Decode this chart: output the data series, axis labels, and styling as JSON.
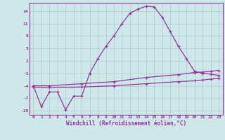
{
  "xlabel": "Windchill (Refroidissement éolien,°C)",
  "bg_color": "#cce8e8",
  "grid_color": "#b0c8c8",
  "line_color": "#993399",
  "xlim": [
    -0.5,
    23.5
  ],
  "ylim": [
    -11,
    16
  ],
  "yticks": [
    -10,
    -7,
    -4,
    -1,
    2,
    5,
    8,
    11,
    14
  ],
  "xticks": [
    0,
    1,
    2,
    3,
    4,
    5,
    6,
    7,
    8,
    9,
    10,
    11,
    12,
    13,
    14,
    15,
    16,
    17,
    18,
    19,
    20,
    21,
    22,
    23
  ],
  "curve1_x": [
    0,
    1,
    2,
    3,
    4,
    5,
    6,
    7,
    8,
    9,
    10,
    11,
    12,
    13,
    14,
    15,
    16,
    17,
    18,
    19,
    20,
    21,
    22,
    23
  ],
  "curve1_y": [
    -4.0,
    -9.0,
    -5.5,
    -5.5,
    -9.8,
    -6.5,
    -6.5,
    -1.0,
    2.5,
    5.5,
    8.0,
    11.0,
    13.5,
    14.5,
    15.2,
    15.0,
    12.5,
    9.0,
    5.5,
    2.5,
    -0.5,
    -1.0,
    -1.2,
    -1.5
  ],
  "curve2_x": [
    0,
    2,
    6,
    10,
    14,
    18,
    20,
    21,
    22,
    23
  ],
  "curve2_y": [
    -4.0,
    -4.0,
    -3.5,
    -3.0,
    -2.0,
    -1.3,
    -0.8,
    -0.7,
    -0.5,
    -0.3
  ],
  "curve3_x": [
    0,
    2,
    6,
    10,
    14,
    18,
    20,
    21,
    22,
    23
  ],
  "curve3_y": [
    -4.3,
    -4.5,
    -4.3,
    -4.0,
    -3.5,
    -3.0,
    -2.8,
    -2.6,
    -2.4,
    -2.2
  ]
}
